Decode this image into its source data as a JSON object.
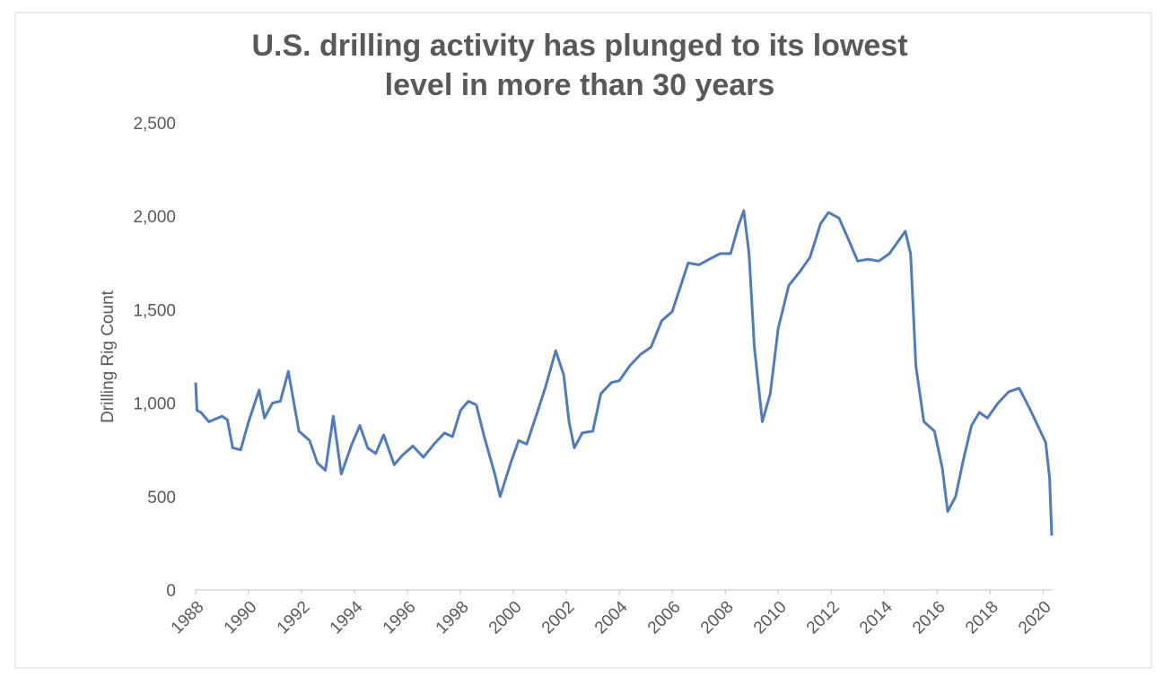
{
  "chart_data": {
    "type": "line",
    "title": "U.S. drilling activity has plunged to its lowest level in more than 30 years",
    "title_lines": [
      "U.S. drilling activity has plunged to its lowest",
      "level in more than 30 years"
    ],
    "y_label": "Drilling Rig Count",
    "x": [
      1988.0,
      1988.05,
      1988.2,
      1988.5,
      1989.0,
      1989.2,
      1989.4,
      1989.7,
      1990.0,
      1990.4,
      1990.6,
      1990.9,
      1991.2,
      1991.5,
      1991.9,
      1992.3,
      1992.6,
      1992.9,
      1993.2,
      1993.5,
      1993.9,
      1994.2,
      1994.5,
      1994.8,
      1995.1,
      1995.5,
      1995.8,
      1996.2,
      1996.6,
      1997.0,
      1997.4,
      1997.7,
      1998.0,
      1998.3,
      1998.6,
      1998.9,
      1999.3,
      1999.5,
      1999.9,
      2000.2,
      2000.5,
      2000.9,
      2001.2,
      2001.6,
      2001.9,
      2002.1,
      2002.3,
      2002.6,
      2003.0,
      2003.3,
      2003.7,
      2004.0,
      2004.4,
      2004.8,
      2005.2,
      2005.6,
      2006.0,
      2006.3,
      2006.6,
      2007.0,
      2007.4,
      2007.8,
      2008.2,
      2008.5,
      2008.7,
      2008.9,
      2009.1,
      2009.4,
      2009.7,
      2010.0,
      2010.4,
      2010.8,
      2011.2,
      2011.6,
      2011.9,
      2012.3,
      2012.7,
      2013.0,
      2013.4,
      2013.8,
      2014.2,
      2014.5,
      2014.8,
      2015.0,
      2015.2,
      2015.5,
      2015.9,
      2016.2,
      2016.4,
      2016.7,
      2017.0,
      2017.3,
      2017.6,
      2017.9,
      2018.3,
      2018.7,
      2019.1,
      2019.5,
      2019.9,
      2020.1,
      2020.25,
      2020.33
    ],
    "series": [
      {
        "name": "Drilling Rig Count",
        "color": "#4f7bbf",
        "values": [
          1110,
          960,
          950,
          900,
          930,
          910,
          760,
          750,
          900,
          1070,
          920,
          1000,
          1010,
          1170,
          850,
          800,
          680,
          640,
          930,
          620,
          780,
          880,
          760,
          730,
          830,
          670,
          720,
          770,
          710,
          780,
          840,
          820,
          960,
          1010,
          990,
          820,
          620,
          500,
          680,
          800,
          780,
          950,
          1080,
          1280,
          1150,
          900,
          760,
          840,
          850,
          1050,
          1110,
          1120,
          1200,
          1260,
          1300,
          1440,
          1490,
          1620,
          1750,
          1740,
          1770,
          1800,
          1800,
          1950,
          2030,
          1800,
          1300,
          900,
          1050,
          1400,
          1630,
          1700,
          1780,
          1960,
          2020,
          1990,
          1860,
          1760,
          1770,
          1760,
          1800,
          1860,
          1920,
          1800,
          1200,
          900,
          850,
          650,
          420,
          500,
          700,
          880,
          950,
          920,
          1000,
          1060,
          1080,
          970,
          850,
          790,
          600,
          290
        ]
      }
    ],
    "xlim": [
      1988,
      2020.33
    ],
    "xticks": [
      1988,
      1990,
      1992,
      1994,
      1996,
      1998,
      2000,
      2002,
      2004,
      2006,
      2008,
      2010,
      2012,
      2014,
      2016,
      2018,
      2020
    ],
    "ylim": [
      0,
      2500
    ],
    "yticks": [
      0,
      {
        "value": 500,
        "label": "500"
      },
      {
        "value": 1000,
        "label": "1,000"
      },
      {
        "value": 1500,
        "label": "1,500"
      },
      {
        "value": 2000,
        "label": "2,000"
      },
      {
        "value": 2500,
        "label": "2,500"
      }
    ],
    "grid": false
  }
}
